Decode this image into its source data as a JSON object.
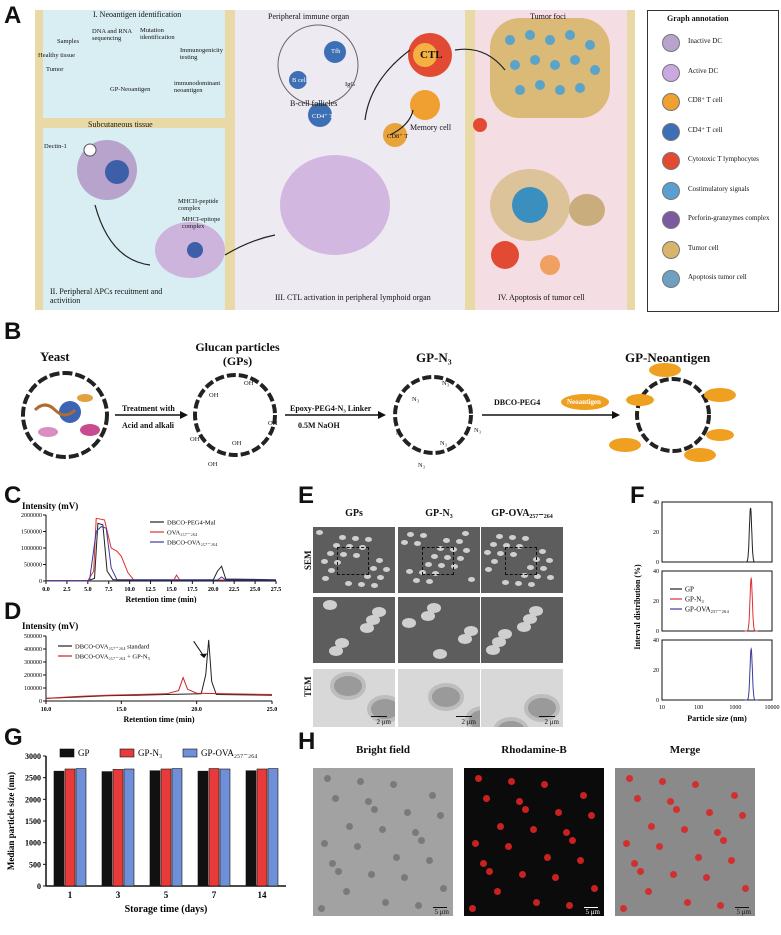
{
  "panels": {
    "A": "A",
    "B": "B",
    "C": "C",
    "D": "D",
    "E": "E",
    "F": "F",
    "G": "G",
    "H": "H"
  },
  "panelA": {
    "sec1_title": "I. Neoantigen identification",
    "sec1_labels": [
      "Healthy tissue",
      "Tumor",
      "Samples",
      "DNA and RNA sequencing",
      "Mutation identification",
      "Immunogenicity testing",
      "immunodominant neoantigen",
      "GP-Neoantigen"
    ],
    "subcutaneous": "Subcutaneous tissue",
    "dectin": "Dectin-1",
    "mhc2": "MHCII-peptide complex",
    "mhc1": "MHCI-epitope complex",
    "sec2_title": "II. Peripheral APCs recuitment and activition",
    "sec3_top": "Peripheral immune organ",
    "bcell_follicles": "B-cell follicles",
    "tfh": "Tfh",
    "bcell": "B cell",
    "igg": "IgG",
    "cd4": "CD4⁺ T",
    "cd8": "CD8⁺ T",
    "ctl": "CTL",
    "memory": "Memory cell",
    "sec3_title": "III. CTL activation in peripheral lymphoid organ",
    "sec4_top": "Tumor foci",
    "sec4_title": "IV. Apoptosis of tumor cell",
    "legend_title": "Graph annotation",
    "legend": [
      "Inactive DC",
      "Active DC",
      "CD8⁺ T cell",
      "CD4⁺ T cell",
      "Cytotoxic T lymphocytes",
      "Costimulatory signals",
      "Perforin-granzymes complex",
      "Tumor cell",
      "Apoptosis tumor cell"
    ]
  },
  "panelB": {
    "yeast": "Yeast",
    "gps": "Glucan particles (GPs)",
    "step1a": "Treatment with",
    "step1b": "Acid and alkali",
    "step2a": "Epoxy-PEG4-N₃ Linker",
    "step2b": "0.5M NaOH",
    "gpn3": "GP-N₃",
    "dbco": "DBCO-PEG4",
    "neo": "Neoantigen",
    "gpneo": "GP-Neoantigen",
    "oh": "OH",
    "n3": "N₃"
  },
  "panelE": {
    "cols": [
      "GPs",
      "GP-N₃",
      "GP-OVA₂₅₇₋₂₆₄"
    ],
    "rows": [
      "SEM",
      "TEM"
    ],
    "scale": "2 μm"
  },
  "panelH": {
    "cols": [
      "Bright field",
      "Rhodamine-B",
      "Merge"
    ],
    "scale": "5 μm"
  },
  "chart_data": [
    {
      "id": "C",
      "type": "line",
      "ylabel": "Intensity (mV)",
      "xlabel": "Retention time (min)",
      "xlim": [
        0,
        27.5
      ],
      "ylim": [
        0,
        2000000
      ],
      "xticks": [
        "0.0",
        "2.5",
        "5.0",
        "7.5",
        "10.0",
        "12.5",
        "15.0",
        "17.5",
        "20.0",
        "22.5",
        "25.0",
        "27.5"
      ],
      "yticks": [
        "0",
        "500000",
        "1000000",
        "1500000",
        "2000000"
      ],
      "legend": "top-right",
      "series": [
        {
          "name": "DBCO-PEG4-Mal",
          "color": "#222222",
          "points": [
            [
              0,
              10000
            ],
            [
              5,
              10000
            ],
            [
              5.8,
              80000
            ],
            [
              6.2,
              1750000
            ],
            [
              6.8,
              1700000
            ],
            [
              7.3,
              300000
            ],
            [
              8,
              40000
            ],
            [
              20,
              40000
            ],
            [
              20.5,
              300000
            ],
            [
              21,
              450000
            ],
            [
              21.5,
              60000
            ],
            [
              27.5,
              40000
            ]
          ]
        },
        {
          "name": "OVA₂₅₇₋₂₆₄",
          "color": "#e03030",
          "points": [
            [
              0,
              10000
            ],
            [
              5,
              10000
            ],
            [
              5.7,
              300000
            ],
            [
              6,
              1900000
            ],
            [
              7,
              1850000
            ],
            [
              7.8,
              1000000
            ],
            [
              8.5,
              900000
            ],
            [
              9,
              750000
            ],
            [
              9.8,
              250000
            ],
            [
              10.5,
              30000
            ],
            [
              15.3,
              30000
            ],
            [
              15.6,
              180000
            ],
            [
              16,
              30000
            ],
            [
              27.5,
              30000
            ]
          ]
        },
        {
          "name": "DBCO-OVA₂₅₇₋₂₆₄",
          "color": "#3a3aa0",
          "points": [
            [
              0,
              10000
            ],
            [
              5.2,
              10000
            ],
            [
              6,
              1500000
            ],
            [
              6.6,
              1650000
            ],
            [
              7.2,
              1600000
            ],
            [
              7.8,
              400000
            ],
            [
              8.5,
              30000
            ],
            [
              20.5,
              30000
            ],
            [
              21,
              120000
            ],
            [
              21.5,
              30000
            ],
            [
              27.5,
              30000
            ]
          ]
        }
      ]
    },
    {
      "id": "D",
      "type": "line",
      "ylabel": "Intensity (mV)",
      "xlabel": "Retention time (min)",
      "xlim": [
        10,
        25
      ],
      "ylim": [
        0,
        500000
      ],
      "xticks": [
        "10.0",
        "15.0",
        "20.0",
        "25.0"
      ],
      "yticks": [
        "0",
        "100000",
        "200000",
        "300000",
        "400000",
        "500000"
      ],
      "legend": "top-left",
      "series": [
        {
          "name": "DBCO-OVA₂₅₇₋₂₆₄ standard",
          "color": "#222222",
          "points": [
            [
              10,
              20000
            ],
            [
              12,
              30000
            ],
            [
              14,
              40000
            ],
            [
              16,
              45000
            ],
            [
              18,
              50000
            ],
            [
              20.3,
              55000
            ],
            [
              20.6,
              200000
            ],
            [
              20.8,
              470000
            ],
            [
              21,
              150000
            ],
            [
              21.3,
              50000
            ],
            [
              25,
              45000
            ]
          ]
        },
        {
          "name": "DBCO-OVA₂₅₇₋₂₆₄ + GP-N₃",
          "color": "#d02020",
          "points": [
            [
              10,
              20000
            ],
            [
              12,
              35000
            ],
            [
              14,
              45000
            ],
            [
              16,
              50000
            ],
            [
              18,
              55000
            ],
            [
              18.8,
              80000
            ],
            [
              19.1,
              180000
            ],
            [
              19.4,
              90000
            ],
            [
              20,
              60000
            ],
            [
              25,
              50000
            ]
          ]
        }
      ]
    },
    {
      "id": "F",
      "type": "line",
      "ylabel": "Interval distribution (%)",
      "xlabel": "Particle size (nm)",
      "xscale": "log",
      "xlim": [
        10,
        10000
      ],
      "ylim": [
        0,
        40
      ],
      "xticks": [
        "10",
        "100",
        "1000",
        "10000"
      ],
      "yticks": [
        "0",
        "20",
        "40"
      ],
      "legend": "middle",
      "series": [
        {
          "name": "GP",
          "color": "#222222",
          "peak": 2600,
          "height": 36
        },
        {
          "name": "GP-N₃",
          "color": "#e03030",
          "peak": 2700,
          "height": 35
        },
        {
          "name": "GP-OVA₂₅₇₋₂₆₄",
          "color": "#3a3aa0",
          "peak": 2700,
          "height": 34
        }
      ]
    },
    {
      "id": "G",
      "type": "bar",
      "ylabel": "Median particle size (nm)",
      "xlabel": "Storage time (days)",
      "ylim": [
        0,
        3000
      ],
      "yticks": [
        "0",
        "500",
        "1000",
        "1500",
        "2000",
        "2500",
        "3000"
      ],
      "categories": [
        "1",
        "3",
        "5",
        "7",
        "14"
      ],
      "legend": "top",
      "series": [
        {
          "name": "GP",
          "color": "#111111",
          "values": [
            2650,
            2640,
            2660,
            2650,
            2660
          ]
        },
        {
          "name": "GP-N₃",
          "color": "#e83a3a",
          "values": [
            2700,
            2690,
            2700,
            2710,
            2700
          ]
        },
        {
          "name": "GP-OVA₂₅₇₋₂₆₄",
          "color": "#6f8fd8",
          "values": [
            2710,
            2700,
            2710,
            2700,
            2710
          ]
        }
      ]
    }
  ]
}
